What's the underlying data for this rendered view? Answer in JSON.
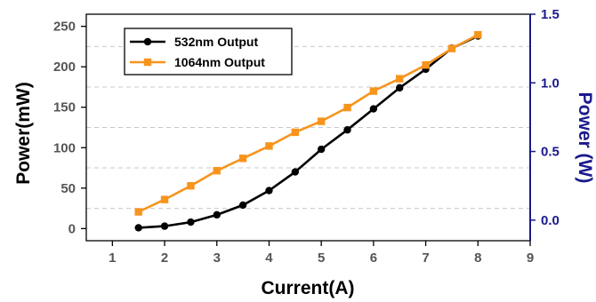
{
  "colors": {
    "series_532": "#000000",
    "series_1064": "#f7941d",
    "right_axis": "#1a1a8c",
    "grid": "#c8c8c8"
  },
  "chart_data": {
    "type": "line",
    "grid": "horizontal dashed",
    "legend_position": "top-left",
    "xlabel": "Current(A)",
    "ylabel_left": "Power(mW)",
    "ylabel_right": "Power (W)",
    "xlim": [
      0.5,
      9
    ],
    "ylim_left": [
      -15,
      265
    ],
    "ylim_right": [
      -0.15,
      1.5
    ],
    "x_ticks": [
      "1",
      "2",
      "3",
      "4",
      "5",
      "6",
      "7",
      "8",
      "9"
    ],
    "y_left_ticks": [
      "0",
      "50",
      "100",
      "150",
      "200",
      "250"
    ],
    "y_right_ticks": [
      "0.0",
      "0.5",
      "1.0",
      "1.5"
    ],
    "x": [
      1.5,
      2,
      2.5,
      3,
      3.5,
      4,
      4.5,
      5,
      5.5,
      6,
      6.5,
      7,
      7.5,
      8
    ],
    "series": [
      {
        "name": "532nm  Output",
        "axis": "left",
        "color": "#000000",
        "marker": "circle",
        "values": [
          1,
          3,
          8,
          17,
          29,
          47,
          70,
          98,
          122,
          148,
          174,
          197,
          223,
          238
        ]
      },
      {
        "name": "1064nm Output",
        "axis": "right",
        "color": "#f7941d",
        "marker": "square",
        "values": [
          0.06,
          0.15,
          0.25,
          0.36,
          0.45,
          0.54,
          0.64,
          0.72,
          0.82,
          0.94,
          1.03,
          1.13,
          1.25,
          1.35
        ]
      }
    ]
  }
}
